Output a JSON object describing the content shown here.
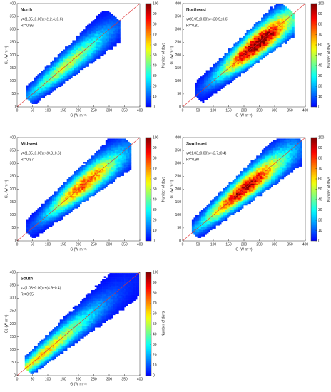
{
  "chart_data": [
    {
      "type": "heatmap",
      "title": "North",
      "annotation": "y=(1.05±0.00)x+(12.4±0.6)",
      "r2": "R²=0.86",
      "x_label": "G (W m⁻²)",
      "y_label": "GL (W m⁻²)",
      "xlim": [
        0,
        400
      ],
      "ylim": [
        0,
        400
      ],
      "xticks": [
        0,
        50,
        100,
        150,
        200,
        250,
        300,
        350,
        400
      ],
      "yticks": [
        0,
        50,
        100,
        150,
        200,
        250,
        300,
        350,
        400
      ],
      "colorbar": {
        "label": "Number of days",
        "lim": [
          0,
          100
        ],
        "ticks": [
          0,
          10,
          20,
          30,
          40,
          50,
          60,
          70,
          80,
          90,
          100
        ]
      }
    },
    {
      "type": "heatmap",
      "title": "Northeast",
      "annotation": "y=(0.95±0.00)x+(20.9±0.6)",
      "r2": "R²=0.81",
      "x_label": "G (W m⁻²)",
      "y_label": "GL (W m⁻²)",
      "xlim": [
        0,
        400
      ],
      "ylim": [
        0,
        400
      ],
      "xticks": [
        0,
        50,
        100,
        150,
        200,
        250,
        300,
        350,
        400
      ],
      "yticks": [
        0,
        50,
        100,
        150,
        200,
        250,
        300,
        350,
        400
      ],
      "colorbar": {
        "label": "Number of days",
        "lim": [
          0,
          100
        ],
        "ticks": [
          0,
          10,
          20,
          30,
          40,
          50,
          60,
          70,
          80,
          90,
          100
        ]
      }
    },
    {
      "type": "heatmap",
      "title": "Midwest",
      "annotation": "y=(1.05±0.00)x+(0.3±0.6)",
      "r2": "R²=0.87",
      "x_label": "G (W m⁻²)",
      "y_label": "GL (W m⁻²)",
      "xlim": [
        0,
        400
      ],
      "ylim": [
        0,
        400
      ],
      "xticks": [
        0,
        50,
        100,
        150,
        200,
        250,
        300,
        350,
        400
      ],
      "yticks": [
        0,
        50,
        100,
        150,
        200,
        250,
        300,
        350,
        400
      ],
      "colorbar": {
        "label": "Number of days",
        "lim": [
          0,
          100
        ],
        "ticks": [
          0,
          10,
          20,
          30,
          40,
          50,
          60,
          70,
          80,
          90,
          100
        ]
      }
    },
    {
      "type": "heatmap",
      "title": "Southeast",
      "annotation": "y=(1.03±0.00)x+(2.7±0.4)",
      "r2": "R²=0.90",
      "x_label": "G (W m⁻²)",
      "y_label": "GL (W m⁻²)",
      "xlim": [
        0,
        400
      ],
      "ylim": [
        0,
        400
      ],
      "xticks": [
        0,
        50,
        100,
        150,
        200,
        250,
        300,
        350,
        400
      ],
      "yticks": [
        0,
        50,
        100,
        150,
        200,
        250,
        300,
        350,
        400
      ],
      "colorbar": {
        "label": "Number of days",
        "lim": [
          0,
          100
        ],
        "ticks": [
          0,
          10,
          20,
          30,
          40,
          50,
          60,
          70,
          80,
          90,
          100
        ]
      }
    },
    {
      "type": "heatmap",
      "title": "South",
      "annotation": "y=(1.03±0.00)x+(4.9±0.4)",
      "r2": "R²=0.95",
      "x_label": "G (W m⁻²)",
      "y_label": "GL (W m⁻²)",
      "xlim": [
        0,
        400
      ],
      "ylim": [
        0,
        400
      ],
      "xticks": [
        0,
        50,
        100,
        150,
        200,
        250,
        300,
        350,
        400
      ],
      "yticks": [
        0,
        50,
        100,
        150,
        200,
        250,
        300,
        350,
        400
      ],
      "colorbar": {
        "label": "Number of days",
        "lim": [
          0,
          100
        ],
        "ticks": [
          0,
          10,
          20,
          30,
          40,
          50,
          60,
          70,
          80,
          90,
          100
        ]
      }
    }
  ]
}
